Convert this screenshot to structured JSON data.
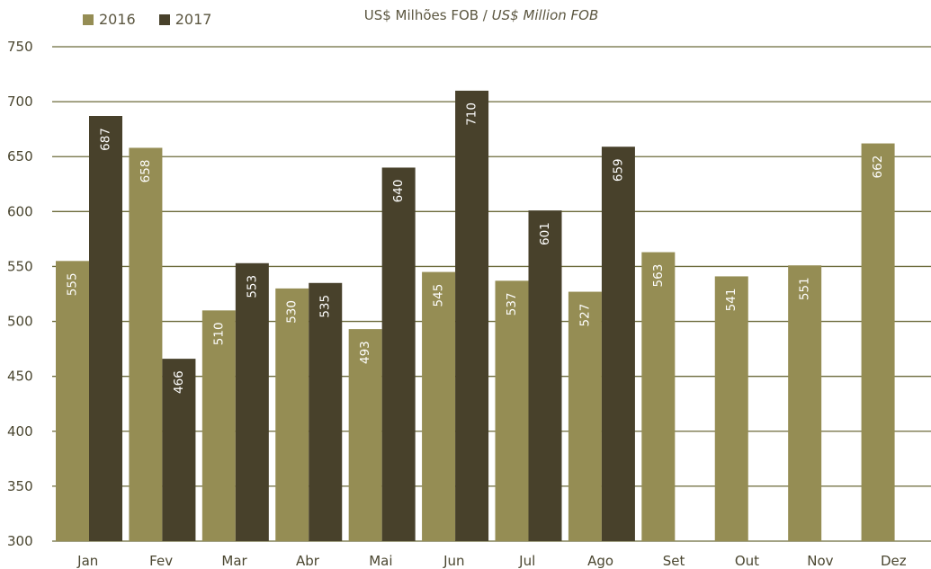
{
  "legend": {
    "items": [
      {
        "label": "2016",
        "color": "#958d54"
      },
      {
        "label": "2017",
        "color": "#48412b"
      }
    ]
  },
  "subtitle": {
    "normal": "US$ Milhões FOB / ",
    "italic": "US$ Million FOB"
  },
  "chart_data": {
    "type": "bar",
    "categories": [
      "Jan",
      "Fev",
      "Mar",
      "Abr",
      "Mai",
      "Jun",
      "Jul",
      "Ago",
      "Set",
      "Out",
      "Nov",
      "Dez"
    ],
    "series": [
      {
        "name": "2016",
        "color": "#958d54",
        "values": [
          555,
          658,
          510,
          530,
          493,
          545,
          537,
          527,
          563,
          541,
          551,
          662
        ]
      },
      {
        "name": "2017",
        "color": "#48412b",
        "values": [
          687,
          466,
          553,
          535,
          640,
          710,
          601,
          659,
          null,
          null,
          null,
          null
        ]
      }
    ],
    "ylim": [
      300,
      750
    ],
    "yticks": [
      300,
      350,
      400,
      450,
      500,
      550,
      600,
      650,
      700,
      750
    ],
    "grid": true,
    "grid_color": "#6b6a3a",
    "axis_text_color": "#4a4630",
    "legend_position": "top-left"
  }
}
